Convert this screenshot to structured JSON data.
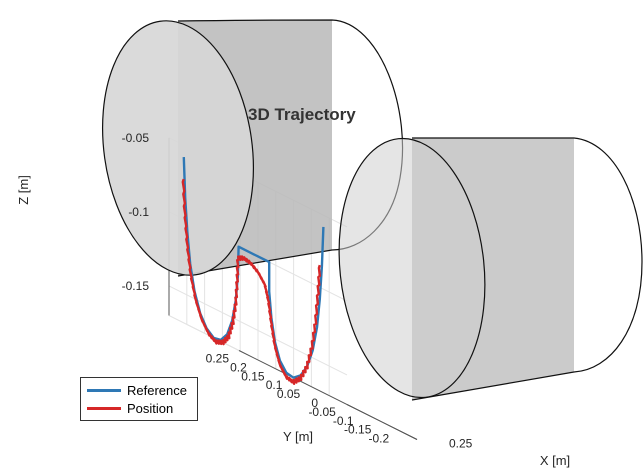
{
  "chart_data": {
    "type": "line",
    "title": "3D Trajectory",
    "xlabel": "X [m]",
    "ylabel": "Y [m]",
    "zlabel": "Z [m]",
    "xlim": [
      0,
      0.25
    ],
    "ylim": [
      -0.25,
      0.25
    ],
    "zlim": [
      -0.17,
      -0.05
    ],
    "x_ticks": [
      "0.25"
    ],
    "y_ticks": [
      "0.25",
      "0.2",
      "0.15",
      "0.1",
      "0.05",
      "0",
      "-0.05",
      "-0.1",
      "-0.15",
      "-0.2"
    ],
    "z_ticks": [
      "-0.05",
      "-0.1",
      "-0.15"
    ],
    "grid": true,
    "legend_position": "bottom-left",
    "series": [
      {
        "name": "Reference",
        "color": "#2e78b5",
        "points": [
          [
            0.03,
            0.232,
            -0.058
          ],
          [
            0.03,
            0.228,
            -0.085
          ],
          [
            0.03,
            0.222,
            -0.108
          ],
          [
            0.03,
            0.214,
            -0.128
          ],
          [
            0.03,
            0.202,
            -0.145
          ],
          [
            0.03,
            0.186,
            -0.158
          ],
          [
            0.03,
            0.168,
            -0.166
          ],
          [
            0.03,
            0.148,
            -0.17
          ],
          [
            0.03,
            0.128,
            -0.169
          ],
          [
            0.03,
            0.11,
            -0.163
          ],
          [
            0.03,
            0.096,
            -0.152
          ],
          [
            0.03,
            0.086,
            -0.137
          ],
          [
            0.03,
            0.08,
            -0.12
          ],
          [
            0.03,
            0.078,
            -0.1
          ],
          [
            0.03,
            0.035,
            -0.1
          ],
          [
            0.03,
            -0.008,
            -0.1
          ],
          [
            0.03,
            -0.008,
            -0.12
          ],
          [
            0.03,
            -0.014,
            -0.137
          ],
          [
            0.03,
            -0.024,
            -0.152
          ],
          [
            0.03,
            -0.038,
            -0.163
          ],
          [
            0.03,
            -0.056,
            -0.169
          ],
          [
            0.03,
            -0.076,
            -0.17
          ],
          [
            0.03,
            -0.096,
            -0.166
          ],
          [
            0.03,
            -0.114,
            -0.158
          ],
          [
            0.03,
            -0.13,
            -0.145
          ],
          [
            0.03,
            -0.142,
            -0.128
          ],
          [
            0.03,
            -0.15,
            -0.108
          ],
          [
            0.03,
            -0.156,
            -0.085
          ],
          [
            0.03,
            -0.16,
            -0.058
          ]
        ]
      },
      {
        "name": "Position",
        "color": "#d62728",
        "points": [
          [
            0.03,
            0.234,
            -0.072
          ],
          [
            0.03,
            0.229,
            -0.096
          ],
          [
            0.03,
            0.222,
            -0.117
          ],
          [
            0.03,
            0.212,
            -0.136
          ],
          [
            0.03,
            0.198,
            -0.151
          ],
          [
            0.03,
            0.181,
            -0.162
          ],
          [
            0.03,
            0.162,
            -0.169
          ],
          [
            0.03,
            0.142,
            -0.172
          ],
          [
            0.03,
            0.122,
            -0.17
          ],
          [
            0.03,
            0.106,
            -0.164
          ],
          [
            0.03,
            0.094,
            -0.153
          ],
          [
            0.03,
            0.086,
            -0.139
          ],
          [
            0.03,
            0.082,
            -0.123
          ],
          [
            0.03,
            0.08,
            -0.108
          ],
          [
            0.03,
            0.064,
            -0.106
          ],
          [
            0.03,
            0.044,
            -0.107
          ],
          [
            0.03,
            0.022,
            -0.111
          ],
          [
            0.03,
            0.004,
            -0.117
          ],
          [
            0.03,
            -0.006,
            -0.127
          ],
          [
            0.03,
            -0.014,
            -0.141
          ],
          [
            0.03,
            -0.024,
            -0.155
          ],
          [
            0.03,
            -0.038,
            -0.166
          ],
          [
            0.03,
            -0.056,
            -0.172
          ],
          [
            0.03,
            -0.076,
            -0.173
          ],
          [
            0.03,
            -0.096,
            -0.168
          ],
          [
            0.03,
            -0.114,
            -0.158
          ],
          [
            0.03,
            -0.128,
            -0.143
          ],
          [
            0.03,
            -0.138,
            -0.125
          ],
          [
            0.03,
            -0.145,
            -0.104
          ],
          [
            0.03,
            -0.15,
            -0.085
          ]
        ]
      }
    ],
    "obstacles": [
      {
        "type": "cylinder",
        "color": "#b4b4b4"
      },
      {
        "type": "cylinder",
        "color": "#b4b4b4"
      }
    ]
  }
}
